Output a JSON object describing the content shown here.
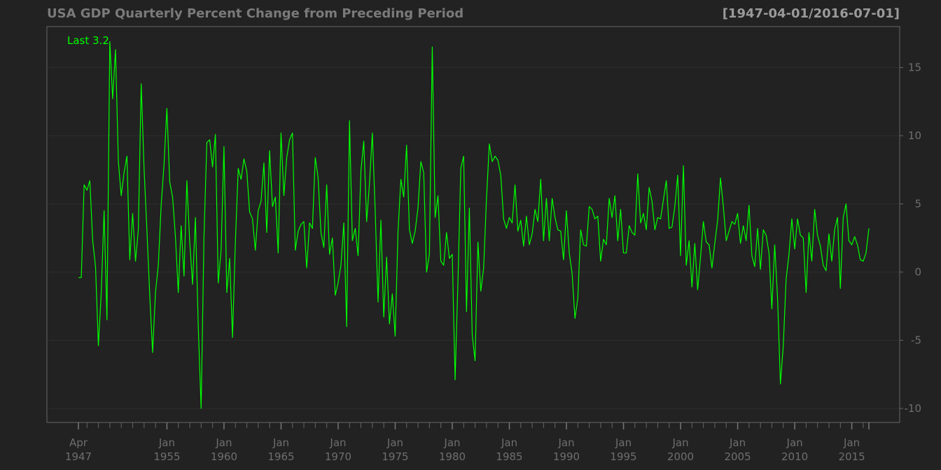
{
  "chart_data": {
    "type": "line",
    "title": "USA GDP Quarterly Percent Change from Preceding Period",
    "date_range_label": "[1947-04-01/2016-07-01]",
    "last_label": "Last 3.2",
    "line_color": "#00ff00",
    "background_color": "#222222",
    "grid": true,
    "ylim": [
      -11,
      17.5
    ],
    "y_ticks": [
      {
        "value": 15,
        "label": "15"
      },
      {
        "value": 10,
        "label": "10"
      },
      {
        "value": 5,
        "label": "5"
      },
      {
        "value": 0,
        "label": "0"
      },
      {
        "value": -5,
        "label": "-5"
      },
      {
        "value": -10,
        "label": "-10"
      }
    ],
    "x_ticks": [
      {
        "date": "1947-04-01",
        "line1": "Apr",
        "line2": "1947"
      },
      {
        "date": "1955-01-01",
        "line1": "Jan",
        "line2": "1955"
      },
      {
        "date": "1960-01-01",
        "line1": "Jan",
        "line2": "1960"
      },
      {
        "date": "1965-01-01",
        "line1": "Jan",
        "line2": "1965"
      },
      {
        "date": "1970-01-01",
        "line1": "Jan",
        "line2": "1970"
      },
      {
        "date": "1975-01-01",
        "line1": "Jan",
        "line2": "1975"
      },
      {
        "date": "1980-01-01",
        "line1": "Jan",
        "line2": "1980"
      },
      {
        "date": "1985-01-01",
        "line1": "Jan",
        "line2": "1985"
      },
      {
        "date": "1990-01-01",
        "line1": "Jan",
        "line2": "1990"
      },
      {
        "date": "1995-01-01",
        "line1": "Jan",
        "line2": "1995"
      },
      {
        "date": "2000-01-01",
        "line1": "Jan",
        "line2": "2000"
      },
      {
        "date": "2005-01-01",
        "line1": "Jan",
        "line2": "2005"
      },
      {
        "date": "2010-01-01",
        "line1": "Jan",
        "line2": "2010"
      },
      {
        "date": "2015-01-01",
        "line1": "Jan",
        "line2": "2015"
      }
    ],
    "minor_tick_years": [
      1948,
      1949,
      1950,
      1951,
      1952,
      1953,
      1954,
      1956,
      1957,
      1958,
      1959,
      1961,
      1962,
      1963,
      1964,
      1966,
      1967,
      1968,
      1969,
      1971,
      1972,
      1973,
      1974,
      1976,
      1977,
      1978,
      1979,
      1981,
      1982,
      1983,
      1984,
      1986,
      1987,
      1988,
      1989,
      1991,
      1992,
      1993,
      1994,
      1996,
      1997,
      1998,
      1999,
      2001,
      2002,
      2003,
      2004,
      2006,
      2007,
      2008,
      2009,
      2011,
      2012,
      2013,
      2014,
      2016
    ],
    "start_date": "1947-04-01",
    "end_date": "2016-07-01",
    "values": [
      -0.4,
      -0.4,
      6.4,
      6.0,
      6.7,
      2.3,
      0.4,
      -5.4,
      -1.5,
      4.5,
      -3.5,
      16.9,
      12.7,
      16.3,
      8.1,
      5.6,
      7.3,
      8.5,
      0.9,
      4.3,
      0.8,
      3.1,
      13.8,
      7.6,
      3.1,
      -1.7,
      -5.9,
      -1.5,
      0.5,
      4.9,
      7.9,
      12.0,
      6.6,
      5.5,
      2.6,
      -1.5,
      3.4,
      -0.3,
      6.7,
      2.2,
      -0.9,
      4.0,
      -4.0,
      -10.0,
      2.6,
      9.5,
      9.7,
      7.7,
      10.1,
      -0.8,
      1.6,
      9.2,
      -1.5,
      1.0,
      -4.8,
      2.2,
      7.6,
      6.8,
      8.3,
      7.4,
      4.4,
      3.9,
      1.6,
      4.5,
      5.2,
      8.0,
      2.9,
      8.9,
      4.8,
      5.5,
      1.4,
      10.2,
      5.6,
      8.4,
      9.7,
      10.2,
      1.6,
      3.0,
      3.5,
      3.7,
      0.3,
      3.6,
      3.2,
      8.4,
      6.9,
      2.9,
      1.8,
      6.4,
      1.3,
      2.5,
      -1.7,
      -0.8,
      0.5,
      3.6,
      -4.0,
      11.1,
      2.3,
      3.2,
      1.2,
      7.4,
      9.6,
      3.7,
      6.5,
      10.2,
      4.5,
      -2.2,
      3.8,
      -3.3,
      1.1,
      -3.8,
      -1.6,
      -4.7,
      3.0,
      6.8,
      5.5,
      9.3,
      3.1,
      2.1,
      3.0,
      4.7,
      8.1,
      7.3,
      0.0,
      1.3,
      16.5,
      4.0,
      5.6,
      0.8,
      0.5,
      2.9,
      1.0,
      1.3,
      -7.9,
      -0.7,
      7.6,
      8.5,
      -2.9,
      4.7,
      -4.6,
      -6.5,
      2.2,
      -1.4,
      0.3,
      5.4,
      9.4,
      8.1,
      8.5,
      8.2,
      7.1,
      3.9,
      3.2,
      4.0,
      3.6,
      6.4,
      3.0,
      3.8,
      1.9,
      4.1,
      2.0,
      2.8,
      4.6,
      3.7,
      6.8,
      2.3,
      5.4,
      2.3,
      5.4,
      4.0,
      3.1,
      3.0,
      0.9,
      4.5,
      1.4,
      -0.1,
      -3.4,
      -1.9,
      3.1,
      2.0,
      1.9,
      4.8,
      4.6,
      3.9,
      4.1,
      0.8,
      2.4,
      2.0,
      5.4,
      4.0,
      5.6,
      2.3,
      4.6,
      1.4,
      1.4,
      3.4,
      2.9,
      2.7,
      7.2,
      3.6,
      4.3,
      3.1,
      6.2,
      5.2,
      3.1,
      4.0,
      3.9,
      5.3,
      6.7,
      3.2,
      3.3,
      4.8,
      7.1,
      1.2,
      7.8,
      0.5,
      2.3,
      -1.1,
      2.1,
      -1.3,
      1.1,
      3.7,
      2.2,
      2.0,
      0.3,
      2.1,
      3.8,
      6.9,
      4.8,
      2.3,
      3.0,
      3.7,
      3.5,
      4.3,
      2.1,
      3.4,
      2.3,
      4.9,
      1.2,
      0.4,
      3.2,
      0.2,
      3.1,
      2.7,
      1.4,
      -2.7,
      2.0,
      -1.9,
      -8.2,
      -5.4,
      -0.5,
      1.3,
      3.9,
      1.7,
      3.9,
      2.7,
      2.5,
      -1.5,
      2.9,
      0.8,
      4.6,
      2.7,
      1.9,
      0.5,
      0.1,
      2.8,
      0.8,
      3.1,
      4.0,
      -1.2,
      4.0,
      5.0,
      2.3,
      2.0,
      2.6,
      2.0,
      0.9,
      0.8,
      1.4,
      3.2
    ]
  }
}
